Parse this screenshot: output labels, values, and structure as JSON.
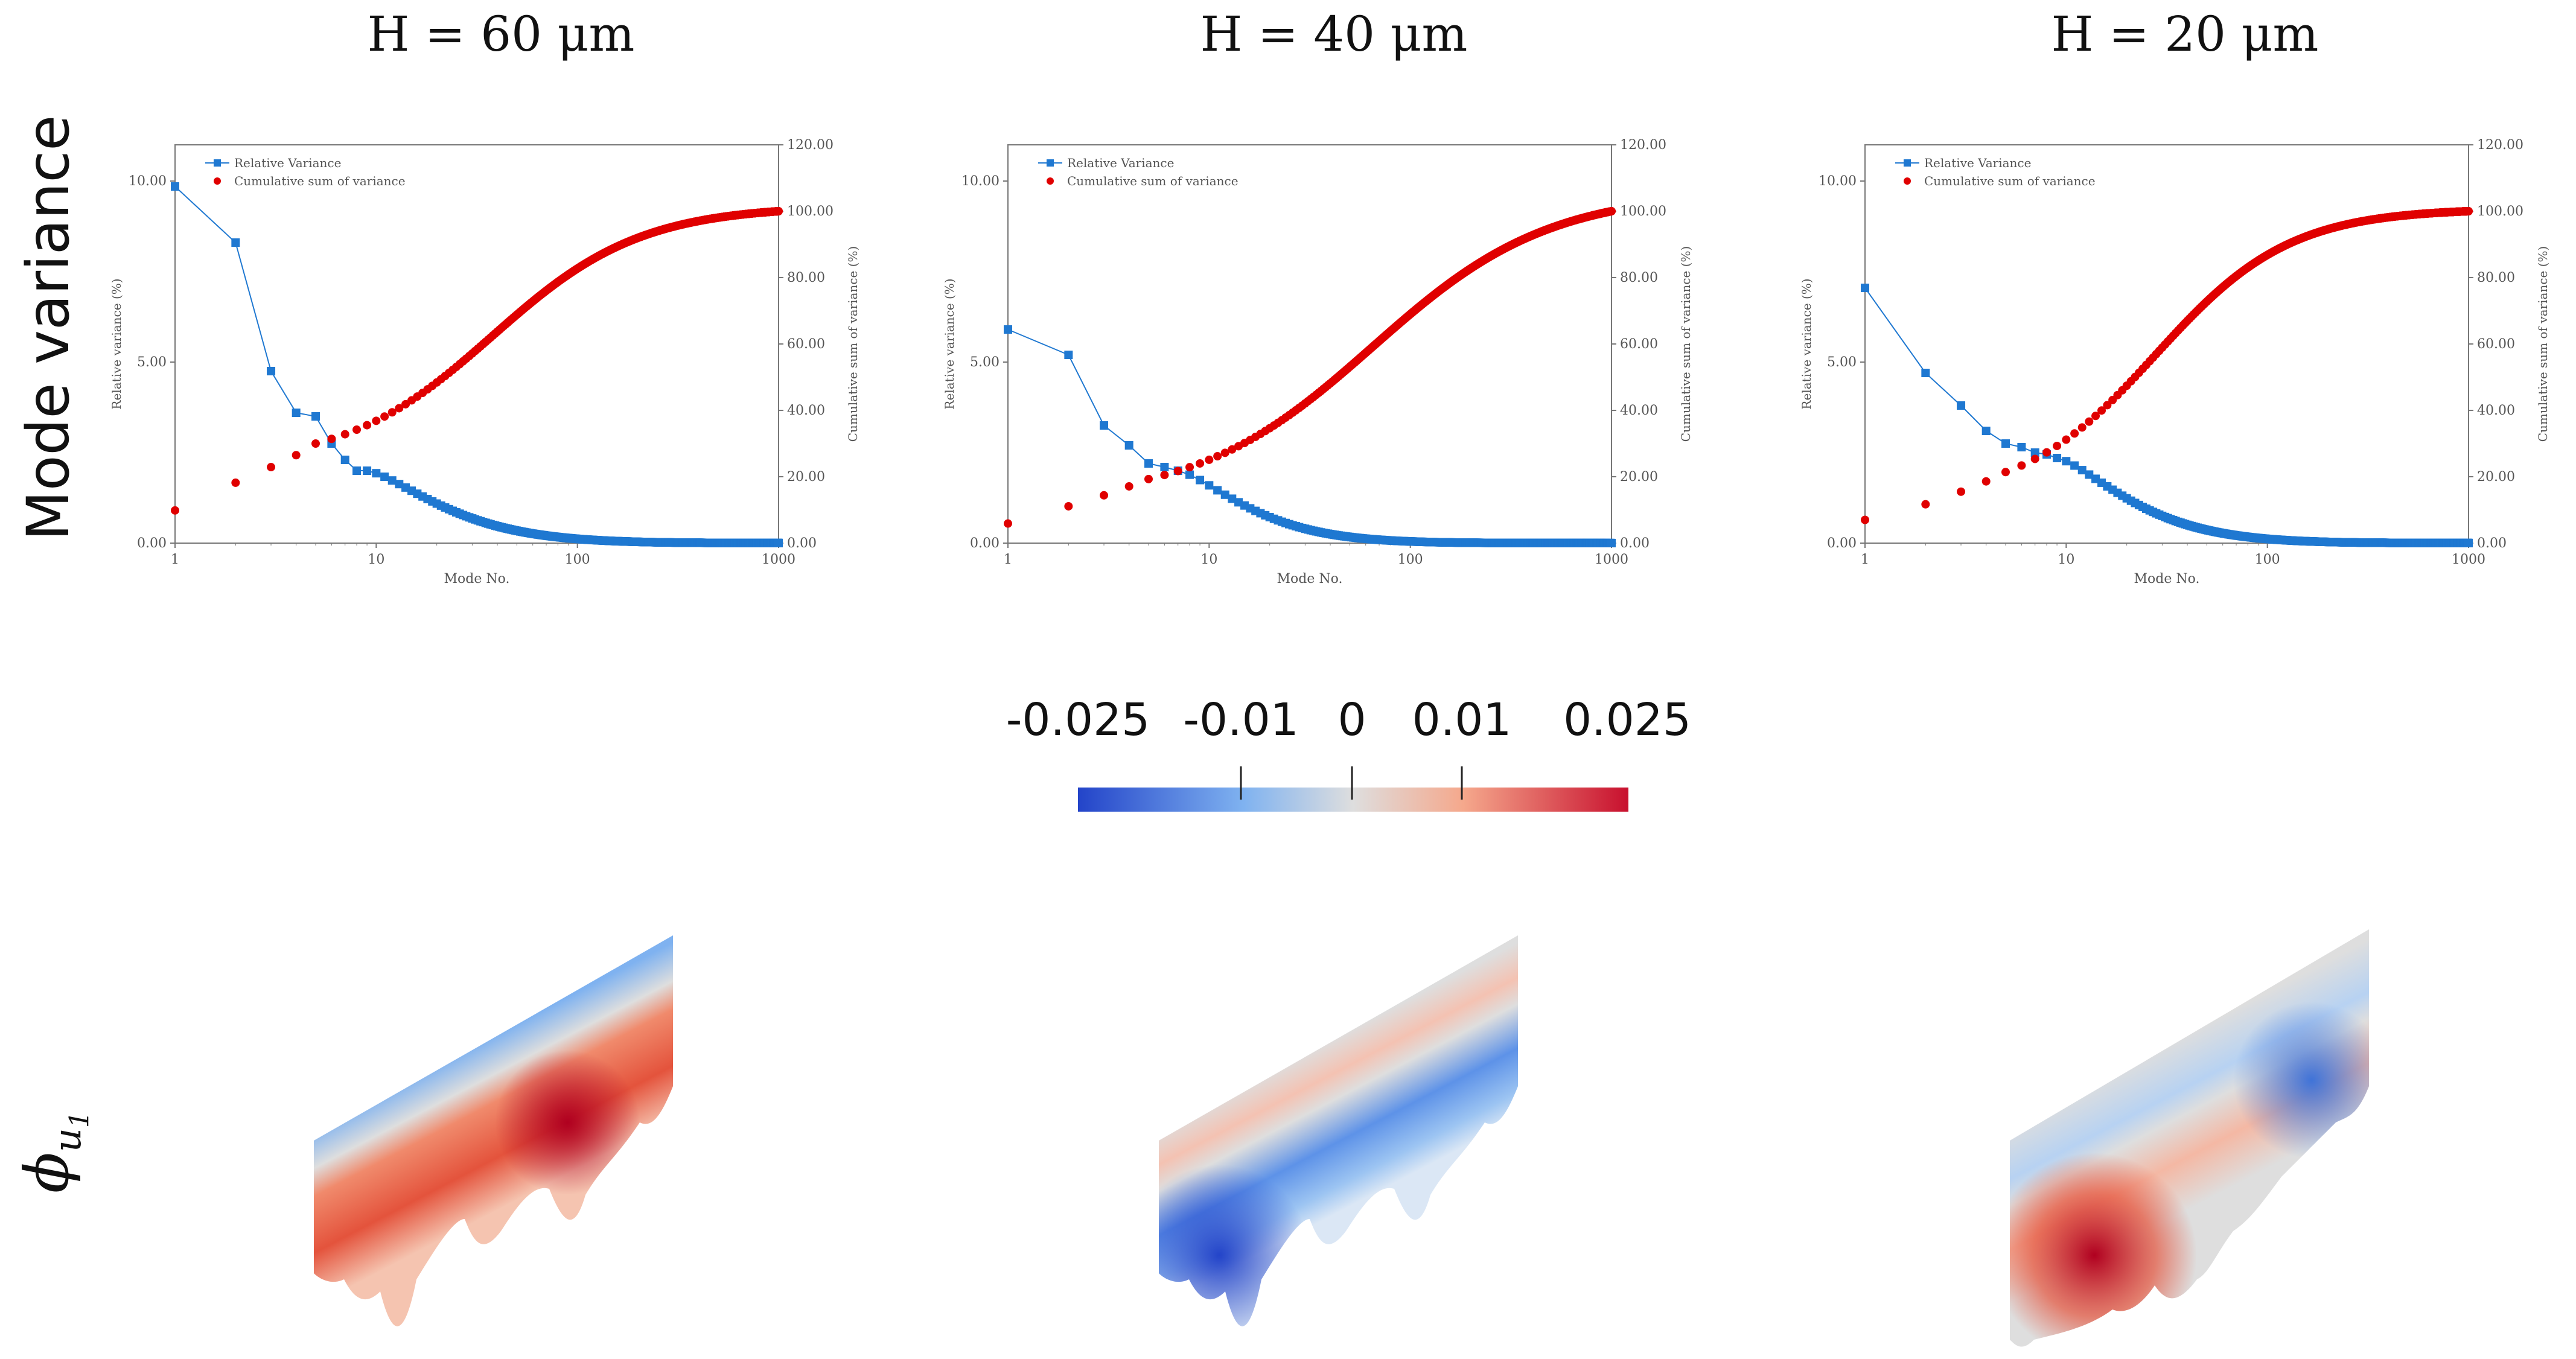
{
  "row_labels": {
    "variance": "Mode variance",
    "mode": "ϕ",
    "mode_sub": "u",
    "mode_subsub": "1"
  },
  "colorbar": {
    "labels": [
      "-0.025",
      "-0.01",
      "0",
      "0.01",
      "0.025"
    ],
    "values": [
      -0.025,
      -0.01,
      0,
      0.01,
      0.025
    ],
    "min": -0.025,
    "max": 0.025,
    "colors": [
      "#2344c9",
      "#7fb2f0",
      "#dedede",
      "#f5a88c",
      "#c8102e"
    ]
  },
  "colors": {
    "relative": "#1f78d1",
    "cumulative": "#e00000",
    "axis": "#777777"
  },
  "chart_data": [
    {
      "type": "scatter",
      "panel_title": "H = 60  μm",
      "xlabel": "Mode No.",
      "ylabel": "Relative variance (%)",
      "y2label": "Cumulative sum of variance  (%)",
      "xscale": "log",
      "xlim": [
        1,
        1000
      ],
      "ylim": [
        0,
        11
      ],
      "y2lim": [
        0,
        120
      ],
      "xticks": [
        "1",
        "10",
        "100",
        "1000"
      ],
      "yticks": [
        "0.00",
        "5.00",
        "10.00"
      ],
      "y2ticks": [
        "0.00",
        "20.00",
        "40.00",
        "60.00",
        "80.00",
        "100.00",
        "120.00"
      ],
      "legend": [
        "Relative Variance",
        "Cumulative sum of variance"
      ],
      "series": [
        {
          "name": "Relative Variance",
          "axis": "left",
          "x": [
            1,
            2,
            3,
            4,
            5,
            6,
            7,
            8,
            9
          ],
          "values": [
            9.85,
            8.3,
            4.75,
            3.6,
            3.5,
            2.75,
            2.3,
            2.0,
            2.0
          ],
          "decay_to": 1000,
          "decay_rate": 0.9
        },
        {
          "name": "Cumulative sum of variance",
          "axis": "right",
          "x": [
            1,
            2,
            3,
            4,
            5
          ],
          "values": [
            9.85,
            18.2,
            22.9,
            26.5,
            30.0
          ],
          "sat_to": 100,
          "sat_mid": 38,
          "sat_width": 1.05
        }
      ]
    },
    {
      "type": "scatter",
      "panel_title": "H = 40  μm",
      "xlabel": "Mode No.",
      "ylabel": "Relative variance (%)",
      "y2label": "Cumulative sum of variance  (%)",
      "xscale": "log",
      "xlim": [
        1,
        1000
      ],
      "ylim": [
        0,
        11
      ],
      "y2lim": [
        0,
        120
      ],
      "xticks": [
        "1",
        "10",
        "100",
        "1000"
      ],
      "yticks": [
        "0.00",
        "5.00",
        "10.00"
      ],
      "y2ticks": [
        "0.00",
        "20.00",
        "40.00",
        "60.00",
        "80.00",
        "100.00",
        "120.00"
      ],
      "legend": [
        "Relative Variance",
        "Cumulative sum of variance"
      ],
      "series": [
        {
          "name": "Relative Variance",
          "axis": "left",
          "x": [
            1,
            2,
            3,
            4,
            5,
            6,
            7
          ],
          "values": [
            5.9,
            5.2,
            3.25,
            2.7,
            2.2,
            2.1,
            2.0
          ],
          "decay_to": 1000,
          "decay_rate": 0.78
        },
        {
          "name": "Cumulative sum of variance",
          "axis": "right",
          "x": [
            1,
            2,
            3,
            4,
            5
          ],
          "values": [
            5.9,
            11.1,
            14.4,
            17.1,
            19.3
          ],
          "sat_to": 100,
          "sat_mid": 65,
          "sat_width": 1.25
        }
      ]
    },
    {
      "type": "scatter",
      "panel_title": "H = 20  μm",
      "xlabel": "Mode No.",
      "ylabel": "Relative variance (%)",
      "y2label": "Cumulative sum of variance  (%)",
      "xscale": "log",
      "xlim": [
        1,
        1000
      ],
      "ylim": [
        0,
        11
      ],
      "y2lim": [
        0,
        120
      ],
      "xticks": [
        "1",
        "10",
        "100",
        "1000"
      ],
      "yticks": [
        "0.00",
        "5.00",
        "10.00"
      ],
      "y2ticks": [
        "0.00",
        "20.00",
        "40.00",
        "60.00",
        "80.00",
        "100.00",
        "120.00"
      ],
      "legend": [
        "Relative Variance",
        "Cumulative sum of variance"
      ],
      "series": [
        {
          "name": "Relative Variance",
          "axis": "left",
          "x": [
            1,
            2,
            3,
            4,
            5,
            6,
            7,
            8,
            9
          ],
          "values": [
            7.05,
            4.7,
            3.8,
            3.1,
            2.75,
            2.65,
            2.5,
            2.45,
            2.35
          ],
          "decay_to": 1000,
          "decay_rate": 0.85
        },
        {
          "name": "Cumulative sum of variance",
          "axis": "right",
          "x": [
            1,
            2,
            3,
            4,
            5
          ],
          "values": [
            7.0,
            11.7,
            15.5,
            18.6,
            21.4
          ],
          "sat_to": 100,
          "sat_mid": 28,
          "sat_width": 0.95
        }
      ]
    }
  ]
}
